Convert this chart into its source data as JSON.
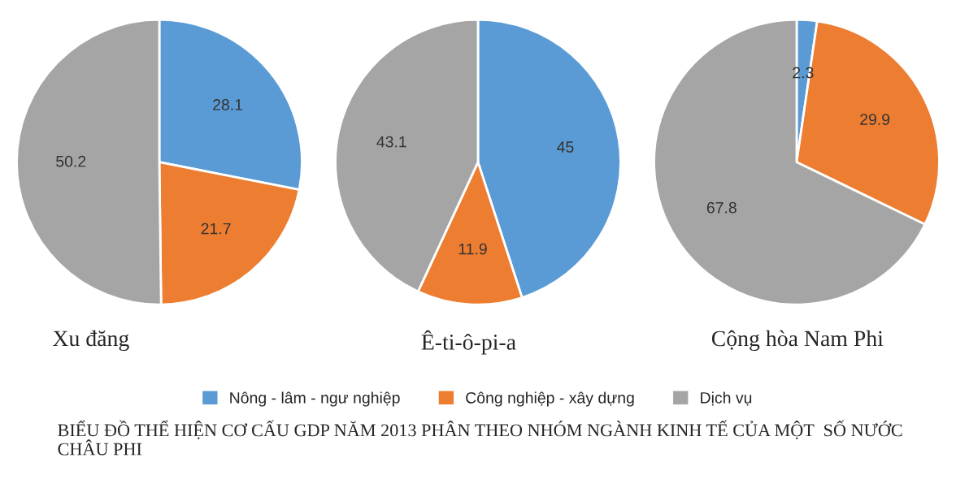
{
  "chart_data": [
    {
      "type": "pie",
      "xlabel": "Xu đăng",
      "categories": [
        "Nông - lâm - ngư nghiệp",
        "Công nghiệp - xây dựng",
        "Dịch vụ"
      ],
      "values": [
        28.1,
        21.7,
        50.2
      ],
      "colors": [
        "#5b9bd5",
        "#ed7d31",
        "#a5a5a5"
      ],
      "data_labels": true,
      "legend": "bottom"
    },
    {
      "type": "pie",
      "xlabel": "Ê-ti-ô-pi-a",
      "categories": [
        null,
        null,
        null
      ],
      "values": [
        45,
        11.9,
        43.1
      ],
      "colors": [
        "#5b9bd5",
        "#ed7d31",
        "#a5a5a5"
      ],
      "data_labels": true,
      "annotations": [
        "BIỂU ĐỒ THỂ HIỆN CƠ CẤU GDP NĂM 2013 PHÂN THEO NHÓM NGÀNH KINH TẾ CỦA MỘT  SỐ NƯỚC CHÂU PHI"
      ]
    },
    {
      "type": "pie",
      "xlabel": "Cộng hòa Nam Phi",
      "categories": [
        null,
        null,
        null
      ],
      "values": [
        2.3,
        29.9,
        67.8
      ],
      "colors": [
        "#5b9bd5",
        "#ed7d31",
        "#a5a5a5"
      ],
      "data_labels": true
    }
  ]
}
